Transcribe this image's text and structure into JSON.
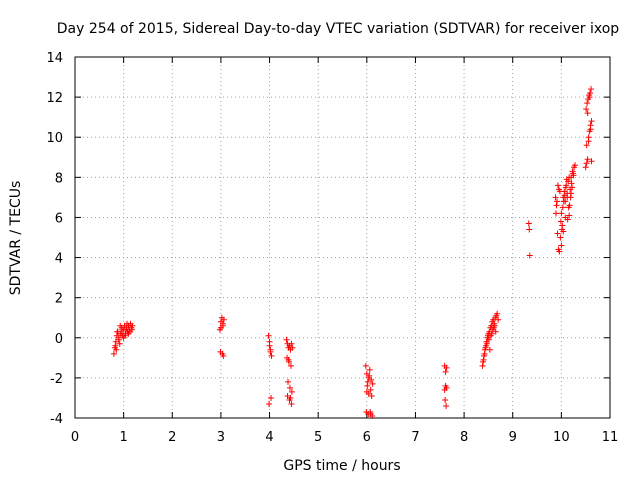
{
  "chart_data": {
    "type": "scatter",
    "title": "Day 254 of 2015, Sidereal Day-to-day VTEC variation (SDTVAR) for receiver ixop",
    "xlabel": "GPS time / hours",
    "ylabel": "SDTVAR / TECUs",
    "xlim": [
      0,
      11
    ],
    "ylim": [
      -4,
      14
    ],
    "xticks": [
      "0",
      "1",
      "2",
      "3",
      "4",
      "5",
      "6",
      "7",
      "8",
      "9",
      "10",
      "11"
    ],
    "yticks": [
      "-4",
      "-2",
      "0",
      "2",
      "4",
      "6",
      "8",
      "10",
      "12",
      "14"
    ],
    "grid": true,
    "marker": "+",
    "color": "#ff0000",
    "series": [
      {
        "name": "ixop",
        "x": [
          0.8,
          0.82,
          0.84,
          0.86,
          0.88,
          0.9,
          0.92,
          0.94,
          0.96,
          0.98,
          1.0,
          1.02,
          1.04,
          1.06,
          1.08,
          1.1,
          1.12,
          1.14,
          1.16,
          1.18,
          0.85,
          0.9,
          0.95,
          1.0,
          1.05,
          1.1,
          0.83,
          0.87,
          0.93,
          0.97,
          1.03,
          1.07,
          1.13,
          1.17,
          2.98,
          3.0,
          3.02,
          3.04,
          3.06,
          2.99,
          3.03,
          3.05,
          3.0,
          3.04,
          3.98,
          4.0,
          4.02,
          4.04,
          3.99,
          4.03,
          4.0,
          4.02,
          4.35,
          4.37,
          4.39,
          4.41,
          4.43,
          4.45,
          4.47,
          4.36,
          4.4,
          4.44,
          4.38,
          4.42,
          4.46,
          4.37,
          4.41,
          4.45,
          4.39,
          4.43,
          5.98,
          6.0,
          6.02,
          6.04,
          6.06,
          6.08,
          6.1,
          6.12,
          5.99,
          6.03,
          6.07,
          6.11,
          6.01,
          6.05,
          6.09,
          6.0,
          6.04,
          6.08,
          7.6,
          7.62,
          7.64,
          7.61,
          7.63,
          7.6,
          7.62,
          7.64,
          8.38,
          8.4,
          8.42,
          8.44,
          8.46,
          8.48,
          8.5,
          8.52,
          8.54,
          8.56,
          8.58,
          8.6,
          8.62,
          8.64,
          8.66,
          8.68,
          8.7,
          8.39,
          8.43,
          8.47,
          8.51,
          8.55,
          8.59,
          8.63,
          8.41,
          8.45,
          8.49,
          8.53,
          8.57,
          8.61,
          8.65,
          9.33,
          9.34,
          9.35,
          9.88,
          9.9,
          9.92,
          9.94,
          9.96,
          9.98,
          10.0,
          10.02,
          10.04,
          10.06,
          10.08,
          10.1,
          10.12,
          10.14,
          10.16,
          10.18,
          10.2,
          10.22,
          10.24,
          10.26,
          10.28,
          9.91,
          9.95,
          9.99,
          10.03,
          10.07,
          10.11,
          10.15,
          10.19,
          10.23,
          9.89,
          9.93,
          9.97,
          10.01,
          10.05,
          10.09,
          10.13,
          10.17,
          10.21,
          10.25,
          10.0,
          10.04,
          10.08,
          10.12,
          10.16,
          10.2,
          10.5,
          10.52,
          10.54,
          10.56,
          10.58,
          10.6,
          10.62,
          10.51,
          10.53,
          10.55,
          10.57,
          10.59,
          10.61,
          10.52,
          10.56,
          10.6,
          10.54,
          10.58,
          10.62
        ],
        "y": [
          -0.8,
          -0.5,
          -0.2,
          0.1,
          0.3,
          0.0,
          -0.3,
          0.2,
          0.5,
          0.1,
          0.4,
          0.6,
          0.2,
          0.5,
          0.3,
          0.6,
          0.4,
          0.7,
          0.5,
          0.6,
          -0.6,
          -0.1,
          0.2,
          0.0,
          0.4,
          0.2,
          -0.4,
          0.3,
          0.6,
          0.4,
          0.1,
          0.7,
          0.3,
          0.4,
          0.4,
          0.8,
          1.0,
          0.6,
          0.9,
          -0.7,
          -0.8,
          -0.9,
          0.5,
          0.7,
          0.1,
          -0.4,
          -0.6,
          -0.9,
          -3.3,
          -3.0,
          -0.2,
          -0.7,
          -0.1,
          -0.3,
          -0.5,
          -0.4,
          -0.6,
          -0.3,
          -0.5,
          -1.0,
          -1.2,
          -1.4,
          -2.2,
          -2.5,
          -2.7,
          -2.9,
          -3.1,
          -3.3,
          -1.1,
          -3.0,
          -1.4,
          -1.8,
          -2.2,
          -2.0,
          -1.6,
          -2.6,
          -2.9,
          -2.3,
          -3.7,
          -3.8,
          -3.7,
          -3.9,
          -2.4,
          -1.9,
          -2.1,
          -2.7,
          -2.8,
          -3.8,
          -1.4,
          -1.7,
          -2.5,
          -3.1,
          -3.4,
          -2.6,
          -2.4,
          -1.5,
          -1.4,
          -1.1,
          -0.8,
          -0.5,
          -0.2,
          0.0,
          0.2,
          0.3,
          0.5,
          0.6,
          0.8,
          0.9,
          0.7,
          1.0,
          1.1,
          1.2,
          0.9,
          -1.2,
          -0.6,
          -0.3,
          -0.1,
          0.1,
          0.4,
          0.6,
          -0.9,
          -0.4,
          0.1,
          -0.6,
          0.2,
          0.5,
          0.3,
          5.7,
          5.4,
          4.1,
          7.0,
          6.6,
          5.2,
          4.4,
          4.3,
          5.0,
          6.2,
          5.6,
          7.0,
          7.3,
          6.8,
          7.6,
          7.2,
          7.8,
          6.1,
          7.4,
          8.0,
          7.5,
          8.2,
          8.5,
          8.6,
          6.8,
          7.4,
          5.8,
          6.5,
          7.1,
          7.9,
          6.5,
          7.0,
          8.3,
          6.2,
          7.6,
          7.3,
          5.4,
          6.8,
          7.5,
          5.9,
          6.6,
          7.7,
          8.1,
          4.6,
          5.3,
          6.0,
          7.0,
          8.0,
          7.2,
          8.5,
          8.7,
          8.9,
          9.8,
          10.3,
          10.6,
          10.8,
          11.4,
          11.7,
          11.9,
          12.1,
          12.2,
          12.4,
          9.6,
          10.0,
          10.4,
          11.2,
          12.0,
          8.8
        ]
      }
    ]
  }
}
